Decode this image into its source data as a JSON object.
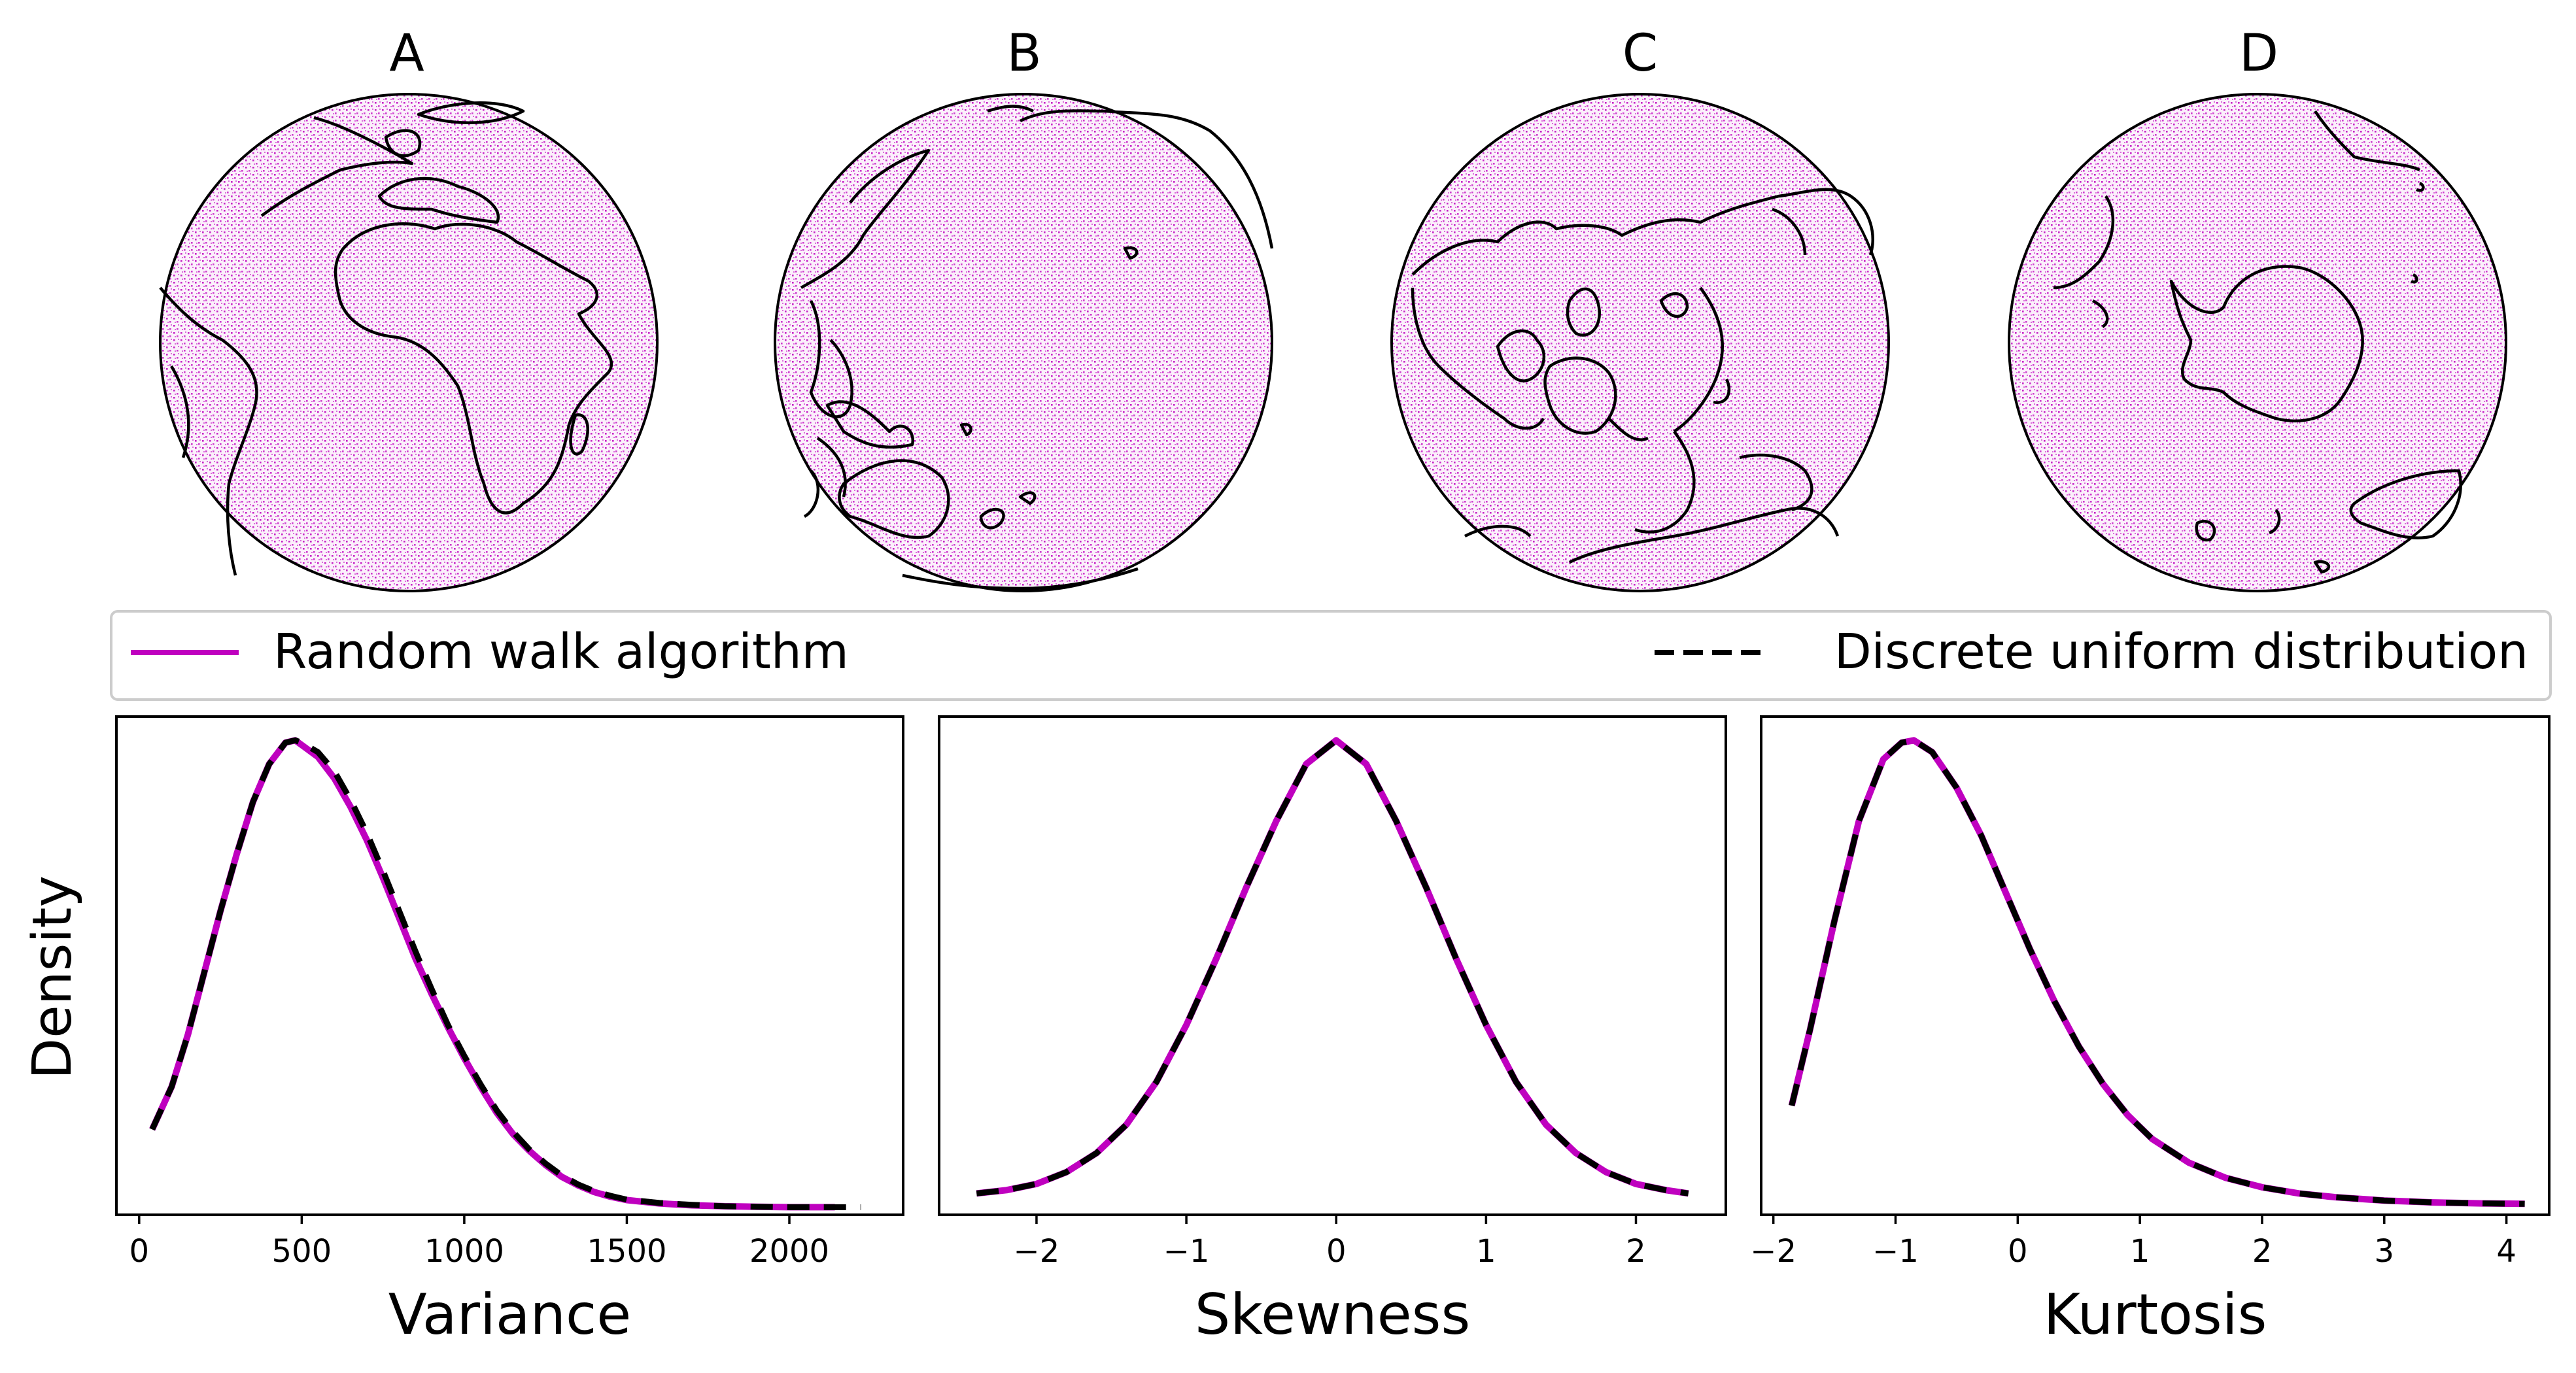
{
  "figure": {
    "globe_panels": [
      {
        "label": "A"
      },
      {
        "label": "B"
      },
      {
        "label": "C"
      },
      {
        "label": "D"
      }
    ],
    "legend": {
      "random_walk_label": "Random walk algorithm",
      "uniform_label": "Discrete uniform distribution"
    },
    "shared_ylabel": "Density",
    "colors": {
      "random_walk": "#bf00bf",
      "uniform": "#000000",
      "sphere_points": "#bf00bf",
      "coastline": "#000000"
    }
  },
  "chart_data": [
    {
      "type": "line",
      "xlabel": "Variance",
      "ylabel": "Density",
      "xlim": [
        -70,
        2350
      ],
      "ylim": [
        0,
        1.05
      ],
      "xticks": [
        "0",
        "500",
        "1000",
        "1500",
        "2000"
      ],
      "xtick_values": [
        0,
        500,
        1000,
        1500,
        2000
      ],
      "yticks": [],
      "series": [
        {
          "name": "Random walk algorithm",
          "style": "solid",
          "x": [
            40,
            100,
            150,
            200,
            250,
            300,
            350,
            400,
            450,
            480,
            500,
            550,
            600,
            650,
            700,
            750,
            800,
            850,
            900,
            950,
            1000,
            1050,
            1100,
            1150,
            1200,
            1250,
            1300,
            1350,
            1400,
            1450,
            1500,
            1600,
            1700,
            1800,
            1900,
            2000,
            2100,
            2140
          ],
          "y": [
            0.18,
            0.27,
            0.38,
            0.51,
            0.64,
            0.76,
            0.87,
            0.95,
            0.995,
            1.0,
            0.99,
            0.965,
            0.92,
            0.86,
            0.79,
            0.71,
            0.625,
            0.54,
            0.465,
            0.395,
            0.33,
            0.27,
            0.215,
            0.17,
            0.135,
            0.105,
            0.08,
            0.062,
            0.048,
            0.038,
            0.031,
            0.024,
            0.02,
            0.018,
            0.017,
            0.016,
            0.016,
            0.016
          ]
        },
        {
          "name": "Discrete uniform distribution",
          "style": "dashed",
          "x": [
            40,
            100,
            150,
            200,
            250,
            300,
            350,
            400,
            450,
            480,
            500,
            550,
            600,
            650,
            700,
            750,
            800,
            850,
            900,
            950,
            1000,
            1050,
            1100,
            1150,
            1200,
            1250,
            1300,
            1350,
            1400,
            1450,
            1500,
            1600,
            1700,
            1800,
            1900,
            2000,
            2100,
            2220
          ],
          "y": [
            0.18,
            0.27,
            0.38,
            0.51,
            0.64,
            0.76,
            0.87,
            0.95,
            0.995,
            1.0,
            0.995,
            0.975,
            0.935,
            0.875,
            0.805,
            0.725,
            0.64,
            0.555,
            0.475,
            0.4,
            0.335,
            0.275,
            0.22,
            0.175,
            0.138,
            0.108,
            0.083,
            0.064,
            0.05,
            0.04,
            0.032,
            0.025,
            0.021,
            0.018,
            0.017,
            0.016,
            0.016,
            0.016
          ]
        }
      ]
    },
    {
      "type": "line",
      "xlabel": "Skewness",
      "ylabel": "Density",
      "xlim": [
        -2.65,
        2.6
      ],
      "ylim": [
        0,
        1.05
      ],
      "xticks": [
        "−2",
        "−1",
        "0",
        "1",
        "2"
      ],
      "xtick_values": [
        -2,
        -1,
        0,
        1,
        2
      ],
      "yticks": [],
      "series": [
        {
          "name": "Random walk algorithm",
          "style": "solid",
          "x": [
            -2.4,
            -2.2,
            -2.0,
            -1.8,
            -1.6,
            -1.4,
            -1.2,
            -1.0,
            -0.8,
            -0.6,
            -0.4,
            -0.2,
            0.0,
            0.2,
            0.4,
            0.6,
            0.8,
            1.0,
            1.2,
            1.4,
            1.6,
            1.8,
            2.0,
            2.2,
            2.35
          ],
          "y": [
            0.045,
            0.052,
            0.065,
            0.09,
            0.13,
            0.19,
            0.28,
            0.4,
            0.54,
            0.69,
            0.83,
            0.95,
            1.0,
            0.95,
            0.83,
            0.69,
            0.54,
            0.4,
            0.28,
            0.19,
            0.13,
            0.09,
            0.065,
            0.052,
            0.045
          ]
        },
        {
          "name": "Discrete uniform distribution",
          "style": "dashed",
          "x": [
            -2.4,
            -2.2,
            -2.0,
            -1.8,
            -1.6,
            -1.4,
            -1.2,
            -1.0,
            -0.8,
            -0.6,
            -0.4,
            -0.2,
            0.0,
            0.2,
            0.4,
            0.6,
            0.8,
            1.0,
            1.2,
            1.4,
            1.6,
            1.8,
            2.0,
            2.2,
            2.35
          ],
          "y": [
            0.045,
            0.052,
            0.065,
            0.09,
            0.13,
            0.19,
            0.28,
            0.4,
            0.54,
            0.69,
            0.83,
            0.95,
            1.0,
            0.95,
            0.83,
            0.69,
            0.54,
            0.4,
            0.28,
            0.19,
            0.13,
            0.09,
            0.065,
            0.052,
            0.045
          ]
        }
      ]
    },
    {
      "type": "line",
      "xlabel": "Kurtosis",
      "ylabel": "Density",
      "xlim": [
        -2.1,
        4.35
      ],
      "ylim": [
        0,
        1.05
      ],
      "xticks": [
        "−2",
        "−1",
        "0",
        "1",
        "2",
        "3",
        "4"
      ],
      "xtick_values": [
        -2,
        -1,
        0,
        1,
        2,
        3,
        4
      ],
      "yticks": [],
      "series": [
        {
          "name": "Random walk algorithm",
          "style": "solid",
          "x": [
            -1.85,
            -1.7,
            -1.5,
            -1.3,
            -1.1,
            -0.95,
            -0.85,
            -0.7,
            -0.5,
            -0.3,
            -0.1,
            0.1,
            0.3,
            0.5,
            0.7,
            0.9,
            1.1,
            1.4,
            1.7,
            2.0,
            2.3,
            2.6,
            3.0,
            3.4,
            3.8,
            4.15
          ],
          "y": [
            0.23,
            0.39,
            0.62,
            0.83,
            0.96,
            0.995,
            1.0,
            0.975,
            0.9,
            0.8,
            0.68,
            0.56,
            0.45,
            0.355,
            0.275,
            0.21,
            0.16,
            0.11,
            0.078,
            0.058,
            0.045,
            0.037,
            0.03,
            0.026,
            0.024,
            0.023
          ]
        },
        {
          "name": "Discrete uniform distribution",
          "style": "dashed",
          "x": [
            -1.85,
            -1.7,
            -1.5,
            -1.3,
            -1.1,
            -0.95,
            -0.85,
            -0.7,
            -0.5,
            -0.3,
            -0.1,
            0.1,
            0.3,
            0.5,
            0.7,
            0.9,
            1.1,
            1.4,
            1.7,
            2.0,
            2.3,
            2.6,
            3.0,
            3.4,
            3.8,
            4.15
          ],
          "y": [
            0.23,
            0.39,
            0.62,
            0.83,
            0.96,
            0.995,
            1.0,
            0.975,
            0.9,
            0.8,
            0.68,
            0.56,
            0.45,
            0.355,
            0.275,
            0.21,
            0.16,
            0.11,
            0.078,
            0.058,
            0.045,
            0.037,
            0.03,
            0.026,
            0.024,
            0.023
          ]
        }
      ]
    }
  ]
}
